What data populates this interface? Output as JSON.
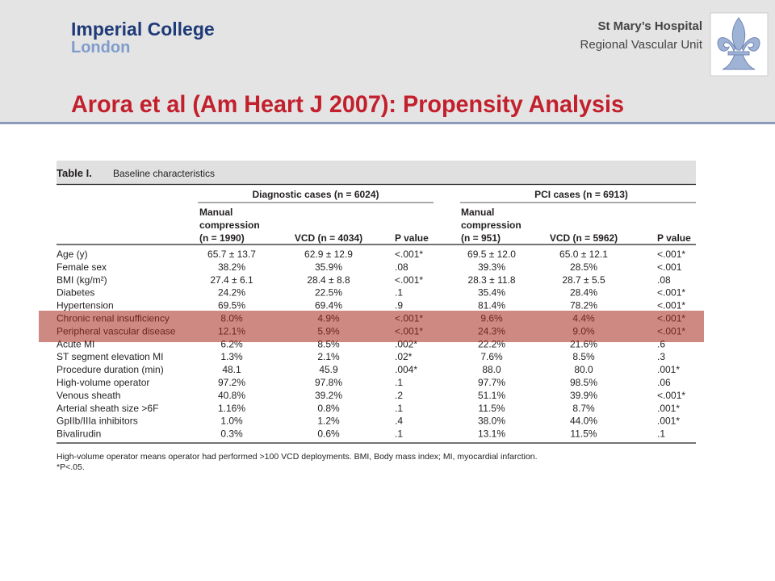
{
  "header": {
    "logo": [
      "Imperial College",
      "London"
    ],
    "hospital": [
      "St Mary’s Hospital",
      "Regional Vascular Unit"
    ],
    "title": "Arora et al (Am Heart J 2007): Propensity Analysis"
  },
  "table": {
    "caption": [
      "Table I.",
      "Baseline characteristics"
    ],
    "groups": [
      "Diagnostic cases (n = 6024)",
      "PCI cases (n = 6913)"
    ],
    "columns": [
      [
        "Manual",
        "compression",
        "(n = 1990)"
      ],
      [
        "VCD (n = 4034)"
      ],
      [
        "P value"
      ],
      [
        "Manual",
        "compression",
        "(n = 951)"
      ],
      [
        "VCD (n = 5962)"
      ],
      [
        "P value"
      ]
    ],
    "rows": [
      [
        "Age (y)",
        "65.7 ± 13.7",
        "62.9 ± 12.9",
        "<.001*",
        "69.5 ± 12.0",
        "65.0 ± 12.1",
        "<.001*"
      ],
      [
        "Female sex",
        "38.2%",
        "35.9%",
        ".08",
        "39.3%",
        "28.5%",
        "<.001"
      ],
      [
        "BMI (kg/m²)",
        "27.4 ± 6.1",
        "28.4 ± 8.8",
        "<.001*",
        "28.3 ± 11.8",
        "28.7 ± 5.5",
        ".08"
      ],
      [
        "Diabetes",
        "24.2%",
        "22.5%",
        ".1",
        "35.4%",
        "28.4%",
        "<.001*"
      ],
      [
        "Hypertension",
        "69.5%",
        "69.4%",
        ".9",
        "81.4%",
        "78.2%",
        "<.001*"
      ],
      [
        "Chronic renal insufficiency",
        "8.0%",
        "4.9%",
        "<.001*",
        "9.6%",
        "4.4%",
        "<.001*"
      ],
      [
        "Peripheral vascular disease",
        "12.1%",
        "5.9%",
        "<.001*",
        "24.3%",
        "9.0%",
        "<.001*"
      ],
      [
        "Acute MI",
        "6.2%",
        "8.5%",
        ".002*",
        "22.2%",
        "21.6%",
        ".6"
      ],
      [
        "ST segment elevation MI",
        "1.3%",
        "2.1%",
        ".02*",
        "7.6%",
        "8.5%",
        ".3"
      ],
      [
        "Procedure duration (min)",
        "48.1",
        "45.9",
        ".004*",
        "88.0",
        "80.0",
        ".001*"
      ],
      [
        "High-volume operator",
        "97.2%",
        "97.8%",
        ".1",
        "97.7%",
        "98.5%",
        ".06"
      ],
      [
        "Venous sheath",
        "40.8%",
        "39.2%",
        ".2",
        "51.1%",
        "39.9%",
        "<.001*"
      ],
      [
        "Arterial sheath size >6F",
        "1.16%",
        "0.8%",
        ".1",
        "11.5%",
        "8.7%",
        ".001*"
      ],
      [
        "GpIIb/IIIa inhibitors",
        "1.0%",
        "1.2%",
        ".4",
        "38.0%",
        "44.0%",
        ".001*"
      ],
      [
        "Bivalirudin",
        "0.3%",
        "0.6%",
        ".1",
        "13.1%",
        "11.5%",
        ".1"
      ]
    ],
    "footnotes": [
      "High-volume operator means operator had performed >100 VCD deployments. BMI, Body mass index; MI, myocardial infarction.",
      "*P<.05."
    ]
  }
}
